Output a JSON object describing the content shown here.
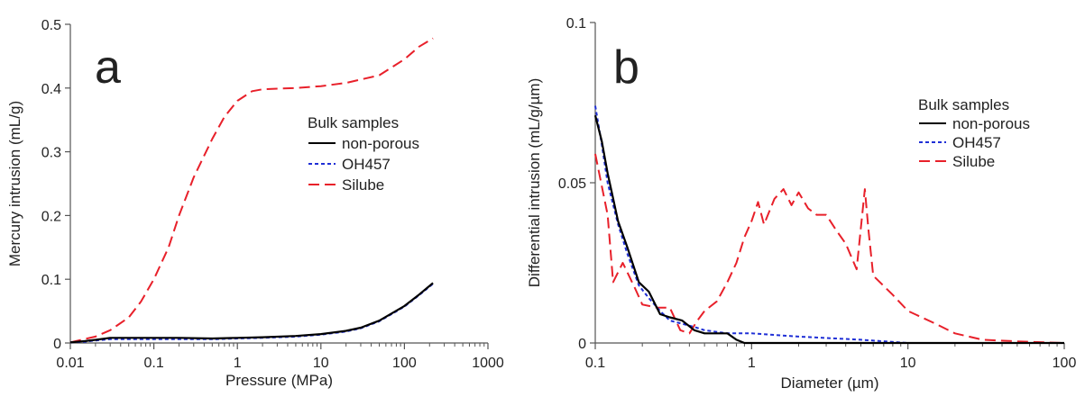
{
  "chart_data": [
    {
      "type": "line",
      "panel_label": "a",
      "xlabel": "Pressure (MPa)",
      "ylabel": "Mercury intrusion (mL/g)",
      "xscale": "log",
      "xlim": [
        0.01,
        1000
      ],
      "ylim": [
        0,
        0.5
      ],
      "xticks": [
        0.01,
        0.1,
        1,
        10,
        100,
        1000
      ],
      "xtick_labels": [
        "0.01",
        "0.1",
        "1",
        "10",
        "100",
        "1000"
      ],
      "yticks": [
        0,
        0.1,
        0.2,
        0.3,
        0.4,
        0.5
      ],
      "ytick_labels": [
        "0",
        "0.1",
        "0.2",
        "0.3",
        "0.4",
        "0.5"
      ],
      "legend": {
        "title": "Bulk samples",
        "placement": "center-right"
      },
      "series": [
        {
          "name": "non-porous",
          "color": "#000000",
          "dash": "solid",
          "x": [
            0.01,
            0.015,
            0.02,
            0.03,
            0.05,
            0.1,
            0.2,
            0.5,
            1,
            2,
            5,
            10,
            20,
            30,
            50,
            100,
            150,
            220
          ],
          "y": [
            0.001,
            0.003,
            0.005,
            0.008,
            0.008,
            0.008,
            0.008,
            0.007,
            0.008,
            0.009,
            0.011,
            0.014,
            0.019,
            0.024,
            0.035,
            0.058,
            0.076,
            0.094
          ]
        },
        {
          "name": "OH457",
          "color": "#1f2fd6",
          "dash": "dotted",
          "x": [
            0.01,
            0.015,
            0.02,
            0.03,
            0.05,
            0.1,
            0.2,
            0.5,
            1,
            2,
            5,
            10,
            20,
            30,
            50,
            100,
            150,
            220
          ],
          "y": [
            0.001,
            0.002,
            0.004,
            0.006,
            0.006,
            0.006,
            0.006,
            0.006,
            0.007,
            0.008,
            0.01,
            0.013,
            0.018,
            0.023,
            0.034,
            0.057,
            0.075,
            0.093
          ]
        },
        {
          "name": "Silube",
          "color": "#e8202a",
          "dash": "dashed",
          "x": [
            0.01,
            0.02,
            0.03,
            0.05,
            0.07,
            0.1,
            0.15,
            0.2,
            0.3,
            0.5,
            0.7,
            1,
            1.5,
            2,
            3,
            5,
            10,
            20,
            50,
            100,
            150,
            220
          ],
          "y": [
            0.001,
            0.01,
            0.02,
            0.04,
            0.065,
            0.1,
            0.15,
            0.2,
            0.26,
            0.32,
            0.355,
            0.38,
            0.395,
            0.398,
            0.399,
            0.4,
            0.403,
            0.408,
            0.42,
            0.445,
            0.465,
            0.478
          ]
        }
      ]
    },
    {
      "type": "line",
      "panel_label": "b",
      "xlabel": "Diameter (µm)",
      "ylabel": "Differential intrusion (mL/g/µm)",
      "xscale": "log",
      "xlim": [
        0.1,
        100
      ],
      "ylim": [
        0,
        0.1
      ],
      "xticks": [
        0.1,
        1,
        10,
        100
      ],
      "xtick_labels": [
        "0.1",
        "1",
        "10",
        "100"
      ],
      "yticks": [
        0,
        0.05,
        0.1
      ],
      "ytick_labels": [
        "0",
        "0.05",
        "0.1"
      ],
      "legend": {
        "title": "Bulk samples",
        "placement": "upper-right"
      },
      "series": [
        {
          "name": "non-porous",
          "color": "#000000",
          "dash": "solid",
          "x": [
            0.1,
            0.11,
            0.12,
            0.14,
            0.16,
            0.19,
            0.22,
            0.26,
            0.3,
            0.36,
            0.43,
            0.5,
            0.6,
            0.7,
            0.8,
            0.9,
            1,
            1.2,
            2,
            5,
            10,
            100
          ],
          "y": [
            0.071,
            0.063,
            0.053,
            0.038,
            0.03,
            0.019,
            0.016,
            0.009,
            0.008,
            0.007,
            0.004,
            0.003,
            0.003,
            0.003,
            0.001,
            0.0,
            0.0,
            0.0,
            0.0,
            0.0,
            0.0,
            0.0
          ]
        },
        {
          "name": "OH457",
          "color": "#1f2fd6",
          "dash": "dotted",
          "x": [
            0.1,
            0.11,
            0.12,
            0.14,
            0.16,
            0.19,
            0.22,
            0.26,
            0.3,
            0.36,
            0.43,
            0.5,
            0.7,
            1,
            2,
            5,
            10,
            100
          ],
          "y": [
            0.074,
            0.062,
            0.05,
            0.037,
            0.028,
            0.018,
            0.014,
            0.01,
            0.007,
            0.006,
            0.005,
            0.004,
            0.003,
            0.003,
            0.002,
            0.001,
            0.0,
            0.0
          ]
        },
        {
          "name": "Silube",
          "color": "#e8202a",
          "dash": "dashed",
          "x": [
            0.1,
            0.12,
            0.13,
            0.15,
            0.18,
            0.2,
            0.25,
            0.3,
            0.35,
            0.4,
            0.45,
            0.5,
            0.6,
            0.7,
            0.8,
            0.9,
            1,
            1.1,
            1.2,
            1.4,
            1.6,
            1.8,
            2.0,
            2.3,
            2.6,
            3.0,
            3.5,
            4.0,
            4.7,
            5.3,
            5.6,
            6,
            8,
            10,
            15,
            20,
            30,
            50,
            100
          ],
          "y": [
            0.059,
            0.04,
            0.019,
            0.025,
            0.017,
            0.012,
            0.011,
            0.011,
            0.004,
            0.003,
            0.007,
            0.01,
            0.013,
            0.019,
            0.025,
            0.033,
            0.038,
            0.044,
            0.037,
            0.045,
            0.048,
            0.043,
            0.047,
            0.042,
            0.04,
            0.04,
            0.035,
            0.031,
            0.023,
            0.048,
            0.035,
            0.021,
            0.015,
            0.01,
            0.006,
            0.003,
            0.001,
            0.0005,
            0.0
          ]
        }
      ]
    }
  ]
}
